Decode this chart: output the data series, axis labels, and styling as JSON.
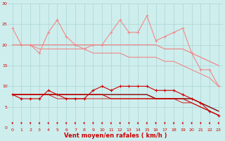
{
  "xlabel": "Vent moyen/en rafales ( km/h )",
  "background_color": "#ceeeed",
  "grid_color": "#aad4d4",
  "xlim": [
    -0.5,
    23.5
  ],
  "ylim": [
    0,
    30
  ],
  "yticks": [
    0,
    5,
    10,
    15,
    20,
    25,
    30
  ],
  "xticks": [
    0,
    1,
    2,
    3,
    4,
    5,
    6,
    7,
    8,
    9,
    10,
    11,
    12,
    13,
    14,
    15,
    16,
    17,
    18,
    19,
    20,
    21,
    22,
    23
  ],
  "x": [
    0,
    1,
    2,
    3,
    4,
    5,
    6,
    7,
    8,
    9,
    10,
    11,
    12,
    13,
    14,
    15,
    16,
    17,
    18,
    19,
    20,
    21,
    22,
    23
  ],
  "rafales_y": [
    24,
    20,
    20,
    18,
    23,
    26,
    22,
    20,
    19,
    20,
    20,
    23,
    26,
    23,
    23,
    27,
    21,
    22,
    23,
    24,
    18,
    14,
    14,
    10
  ],
  "trend1_y": [
    20,
    20,
    20,
    20,
    20,
    20,
    20,
    20,
    20,
    20,
    20,
    20,
    20,
    20,
    20,
    20,
    20,
    19,
    19,
    19,
    18,
    17,
    16,
    15
  ],
  "trend2_y": [
    20,
    20,
    20,
    19,
    19,
    19,
    19,
    19,
    19,
    18,
    18,
    18,
    18,
    17,
    17,
    17,
    17,
    16,
    16,
    15,
    14,
    13,
    12,
    10
  ],
  "moyen_y": [
    8,
    7,
    7,
    7,
    9,
    8,
    7,
    7,
    7,
    9,
    10,
    9,
    10,
    10,
    10,
    10,
    9,
    9,
    9,
    8,
    7,
    6,
    4,
    3
  ],
  "trend3_y": [
    8,
    8,
    8,
    8,
    8,
    8,
    8,
    8,
    8,
    8,
    8,
    8,
    8,
    8,
    8,
    8,
    7,
    7,
    7,
    7,
    7,
    6,
    5,
    4
  ],
  "trend4_y": [
    8,
    8,
    8,
    8,
    8,
    8,
    8,
    8,
    8,
    8,
    8,
    7,
    7,
    7,
    7,
    7,
    7,
    7,
    7,
    7,
    6,
    5,
    4,
    3
  ],
  "trend5_y": [
    8,
    8,
    8,
    8,
    8,
    7,
    7,
    7,
    7,
    7,
    7,
    7,
    7,
    7,
    7,
    7,
    7,
    7,
    7,
    6,
    6,
    5,
    4,
    3
  ],
  "color_light": "#f08888",
  "color_dark": "#cc0000",
  "color_darkest": "#880000"
}
